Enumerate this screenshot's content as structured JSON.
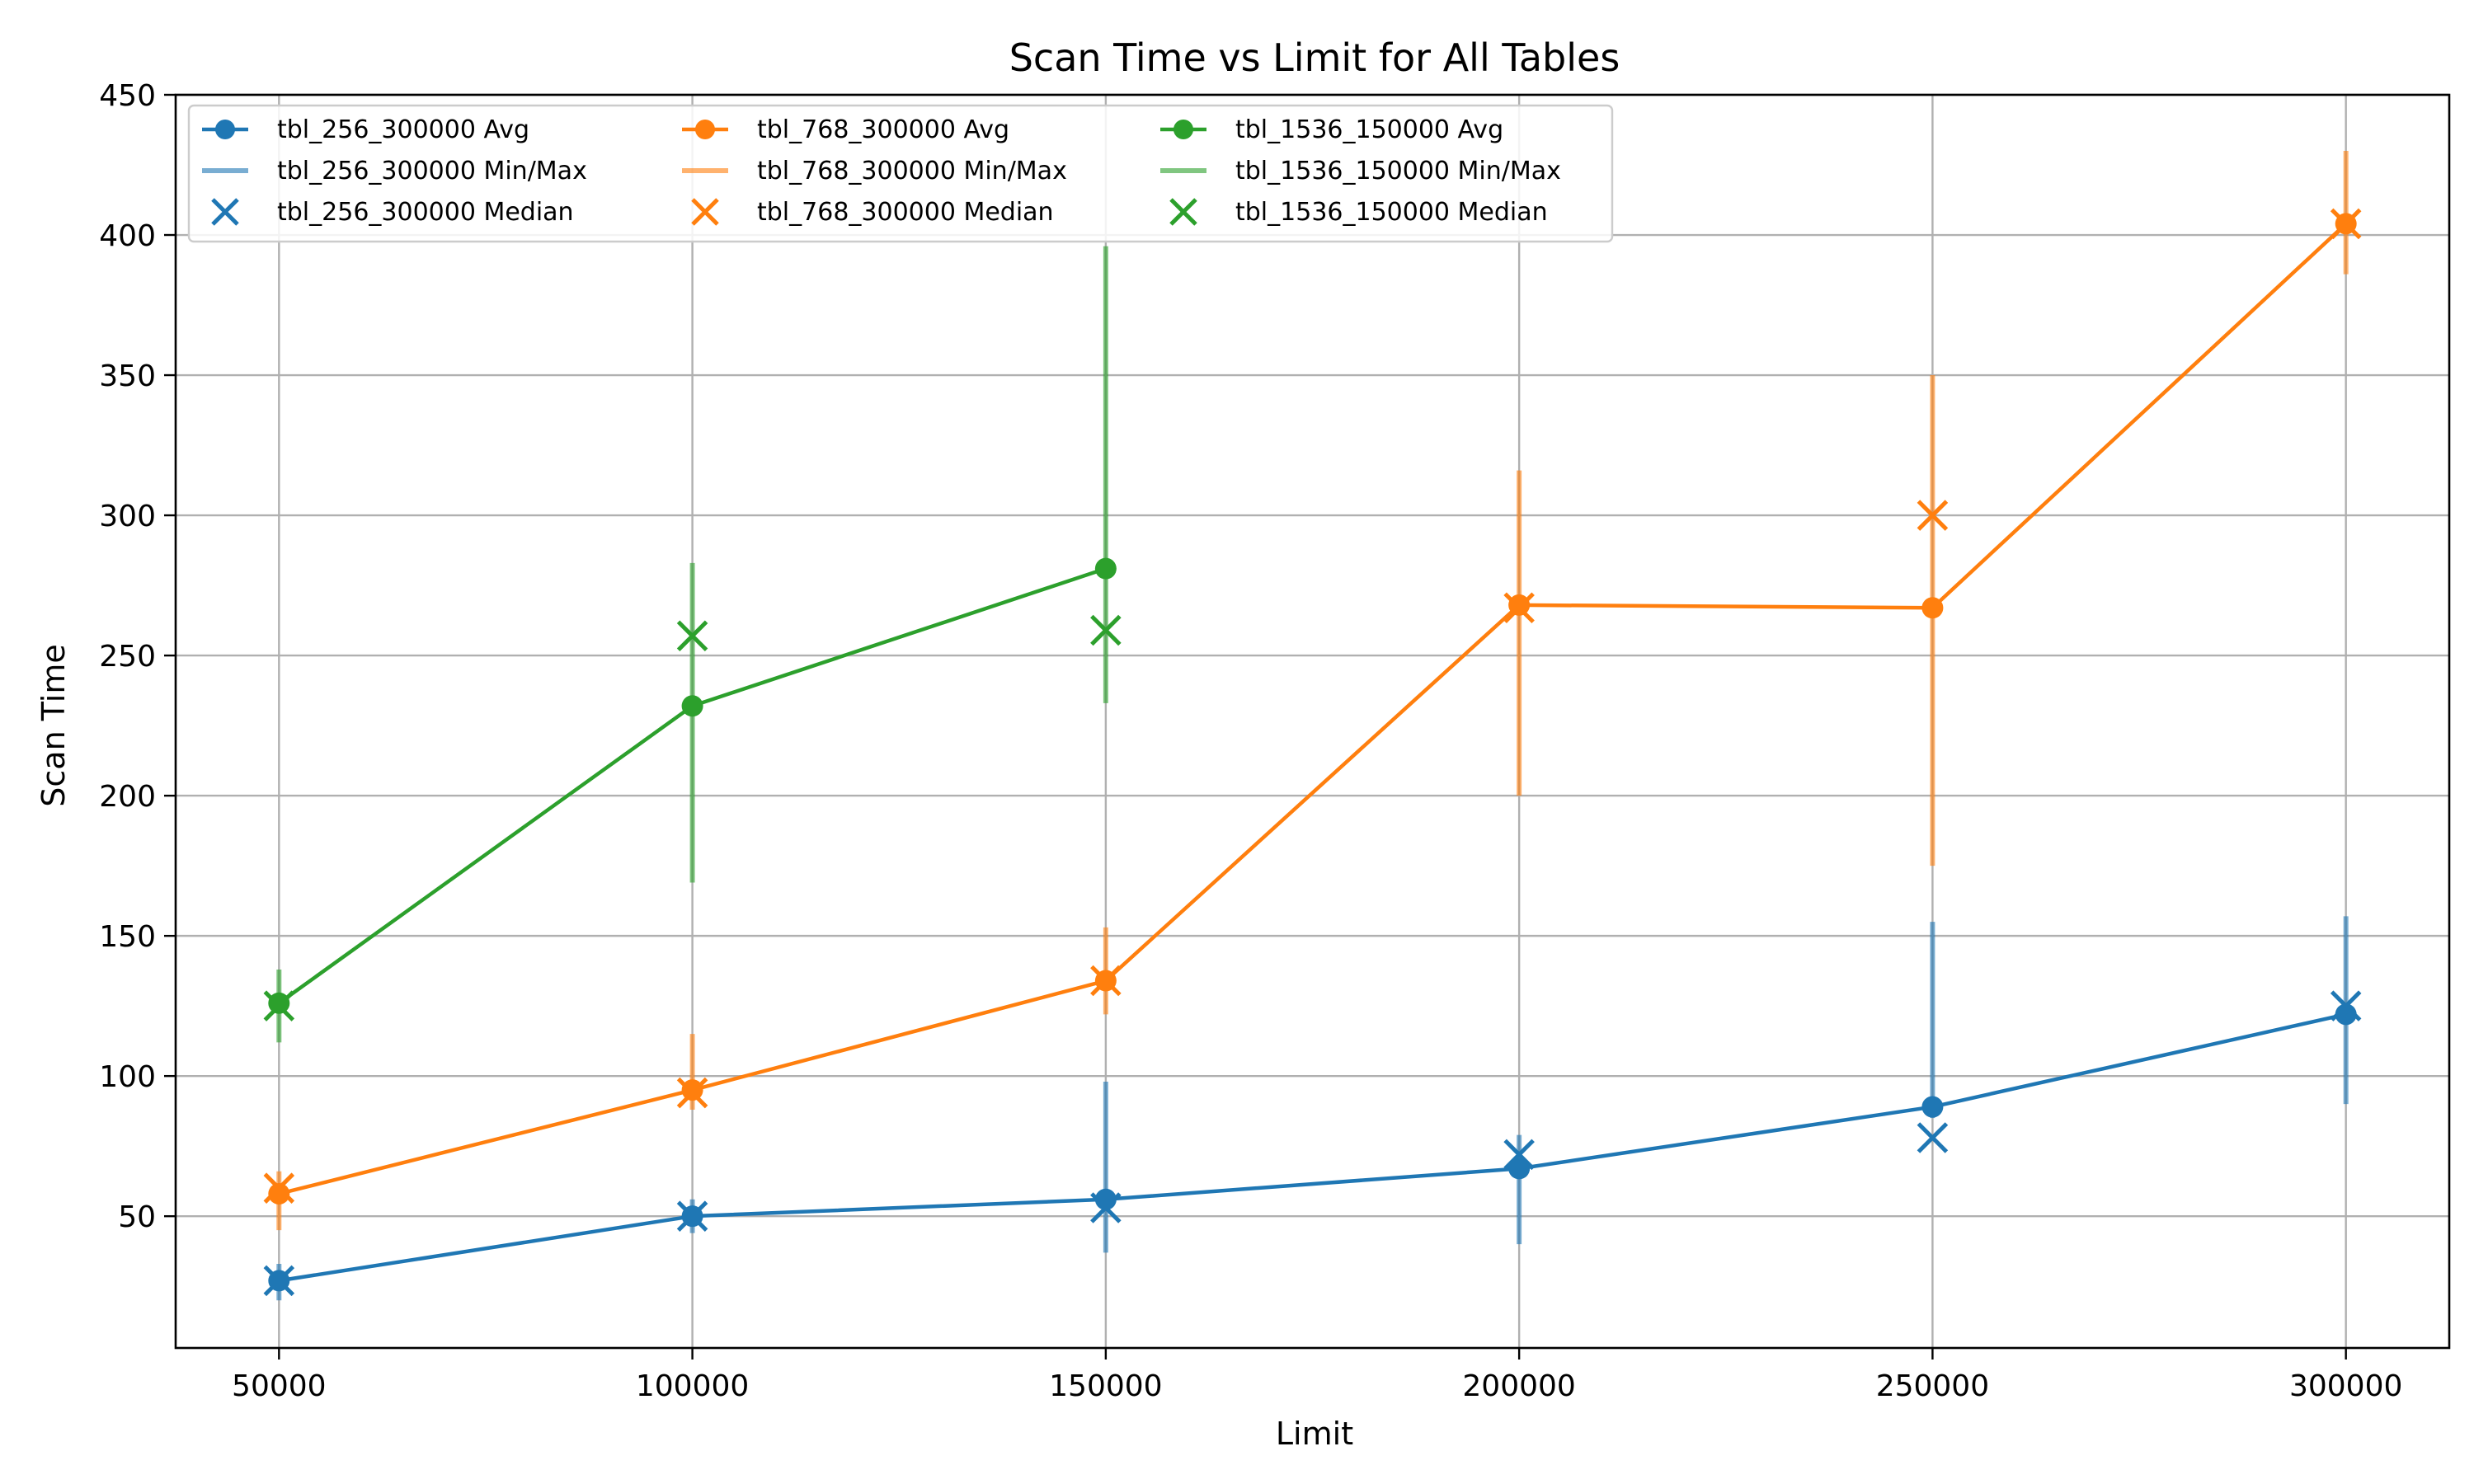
{
  "chart_data": {
    "type": "line",
    "title": "Scan Time vs Limit for All Tables",
    "xlabel": "Limit",
    "ylabel": "Scan Time",
    "x_ticks": [
      50000,
      100000,
      150000,
      200000,
      250000,
      300000
    ],
    "y_ticks": [
      50,
      100,
      150,
      200,
      250,
      300,
      350,
      400,
      450
    ],
    "xlim": [
      37500,
      312500
    ],
    "ylim": [
      3,
      450
    ],
    "grid": true,
    "legend_position": "top-left",
    "legend_columns": 3,
    "series": [
      {
        "table": "tbl_256_300000",
        "color": "#1f77b4",
        "avg_label": "tbl_256_300000 Avg",
        "minmax_label": "tbl_256_300000 Min/Max",
        "median_label": "tbl_256_300000 Median",
        "x": [
          50000,
          100000,
          150000,
          200000,
          250000,
          300000
        ],
        "avg": [
          27,
          50,
          56,
          67,
          89,
          122
        ],
        "min": [
          20,
          44,
          37,
          40,
          85,
          90
        ],
        "max": [
          33,
          56,
          98,
          79,
          155,
          157
        ],
        "median": [
          27,
          50,
          53,
          72,
          78,
          125
        ]
      },
      {
        "table": "tbl_768_300000",
        "color": "#ff7f0e",
        "avg_label": "tbl_768_300000 Avg",
        "minmax_label": "tbl_768_300000 Min/Max",
        "median_label": "tbl_768_300000 Median",
        "x": [
          50000,
          100000,
          150000,
          200000,
          250000,
          300000
        ],
        "avg": [
          58,
          95,
          134,
          268,
          267,
          404
        ],
        "min": [
          45,
          88,
          122,
          200,
          175,
          386
        ],
        "max": [
          66,
          115,
          153,
          316,
          350,
          430
        ],
        "median": [
          60,
          94,
          134,
          267,
          300,
          404
        ]
      },
      {
        "table": "tbl_1536_150000",
        "color": "#2ca02c",
        "avg_label": "tbl_1536_150000 Avg",
        "minmax_label": "tbl_1536_150000 Min/Max",
        "median_label": "tbl_1536_150000 Median",
        "x": [
          50000,
          100000,
          150000
        ],
        "avg": [
          126,
          232,
          281
        ],
        "min": [
          112,
          169,
          233
        ],
        "max": [
          138,
          283,
          396
        ],
        "median": [
          125,
          257,
          259
        ]
      }
    ]
  }
}
